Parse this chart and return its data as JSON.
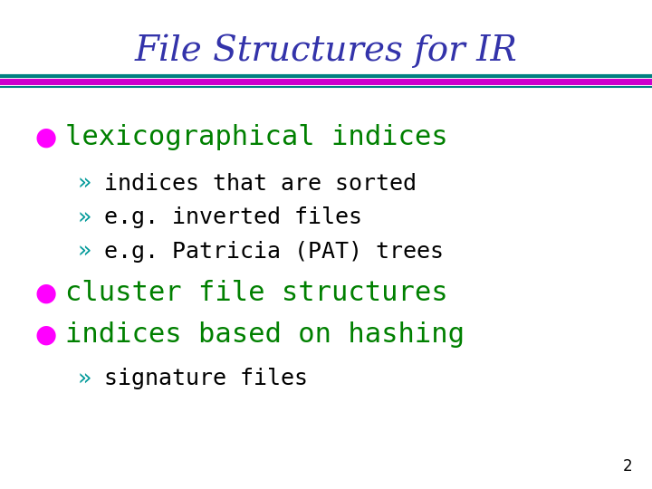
{
  "title": "File Structures for IR",
  "title_color": "#3333AA",
  "title_fontsize": 28,
  "background_color": "#FFFFFF",
  "line1_color": "#008080",
  "line2_color": "#CC00CC",
  "bullet_color": "#FF00FF",
  "bullet1_text": "lexicographical indices",
  "bullet1_color": "#008000",
  "sub_bullet_color": "#009999",
  "sub_bullet_arrow": "»",
  "sub_bullets1": [
    "indices that are sorted",
    "e.g. inverted files",
    "e.g. Patricia (PAT) trees"
  ],
  "bullet2_text": "cluster file structures",
  "bullet2_color": "#008000",
  "bullet3_text": "indices based on hashing",
  "bullet3_color": "#008000",
  "sub_bullets3": [
    "signature files"
  ],
  "sub_bullet_text_color": "#000000",
  "page_number": "2",
  "page_num_color": "#000000",
  "bullet_fontsize": 22,
  "sub_fontsize": 18
}
